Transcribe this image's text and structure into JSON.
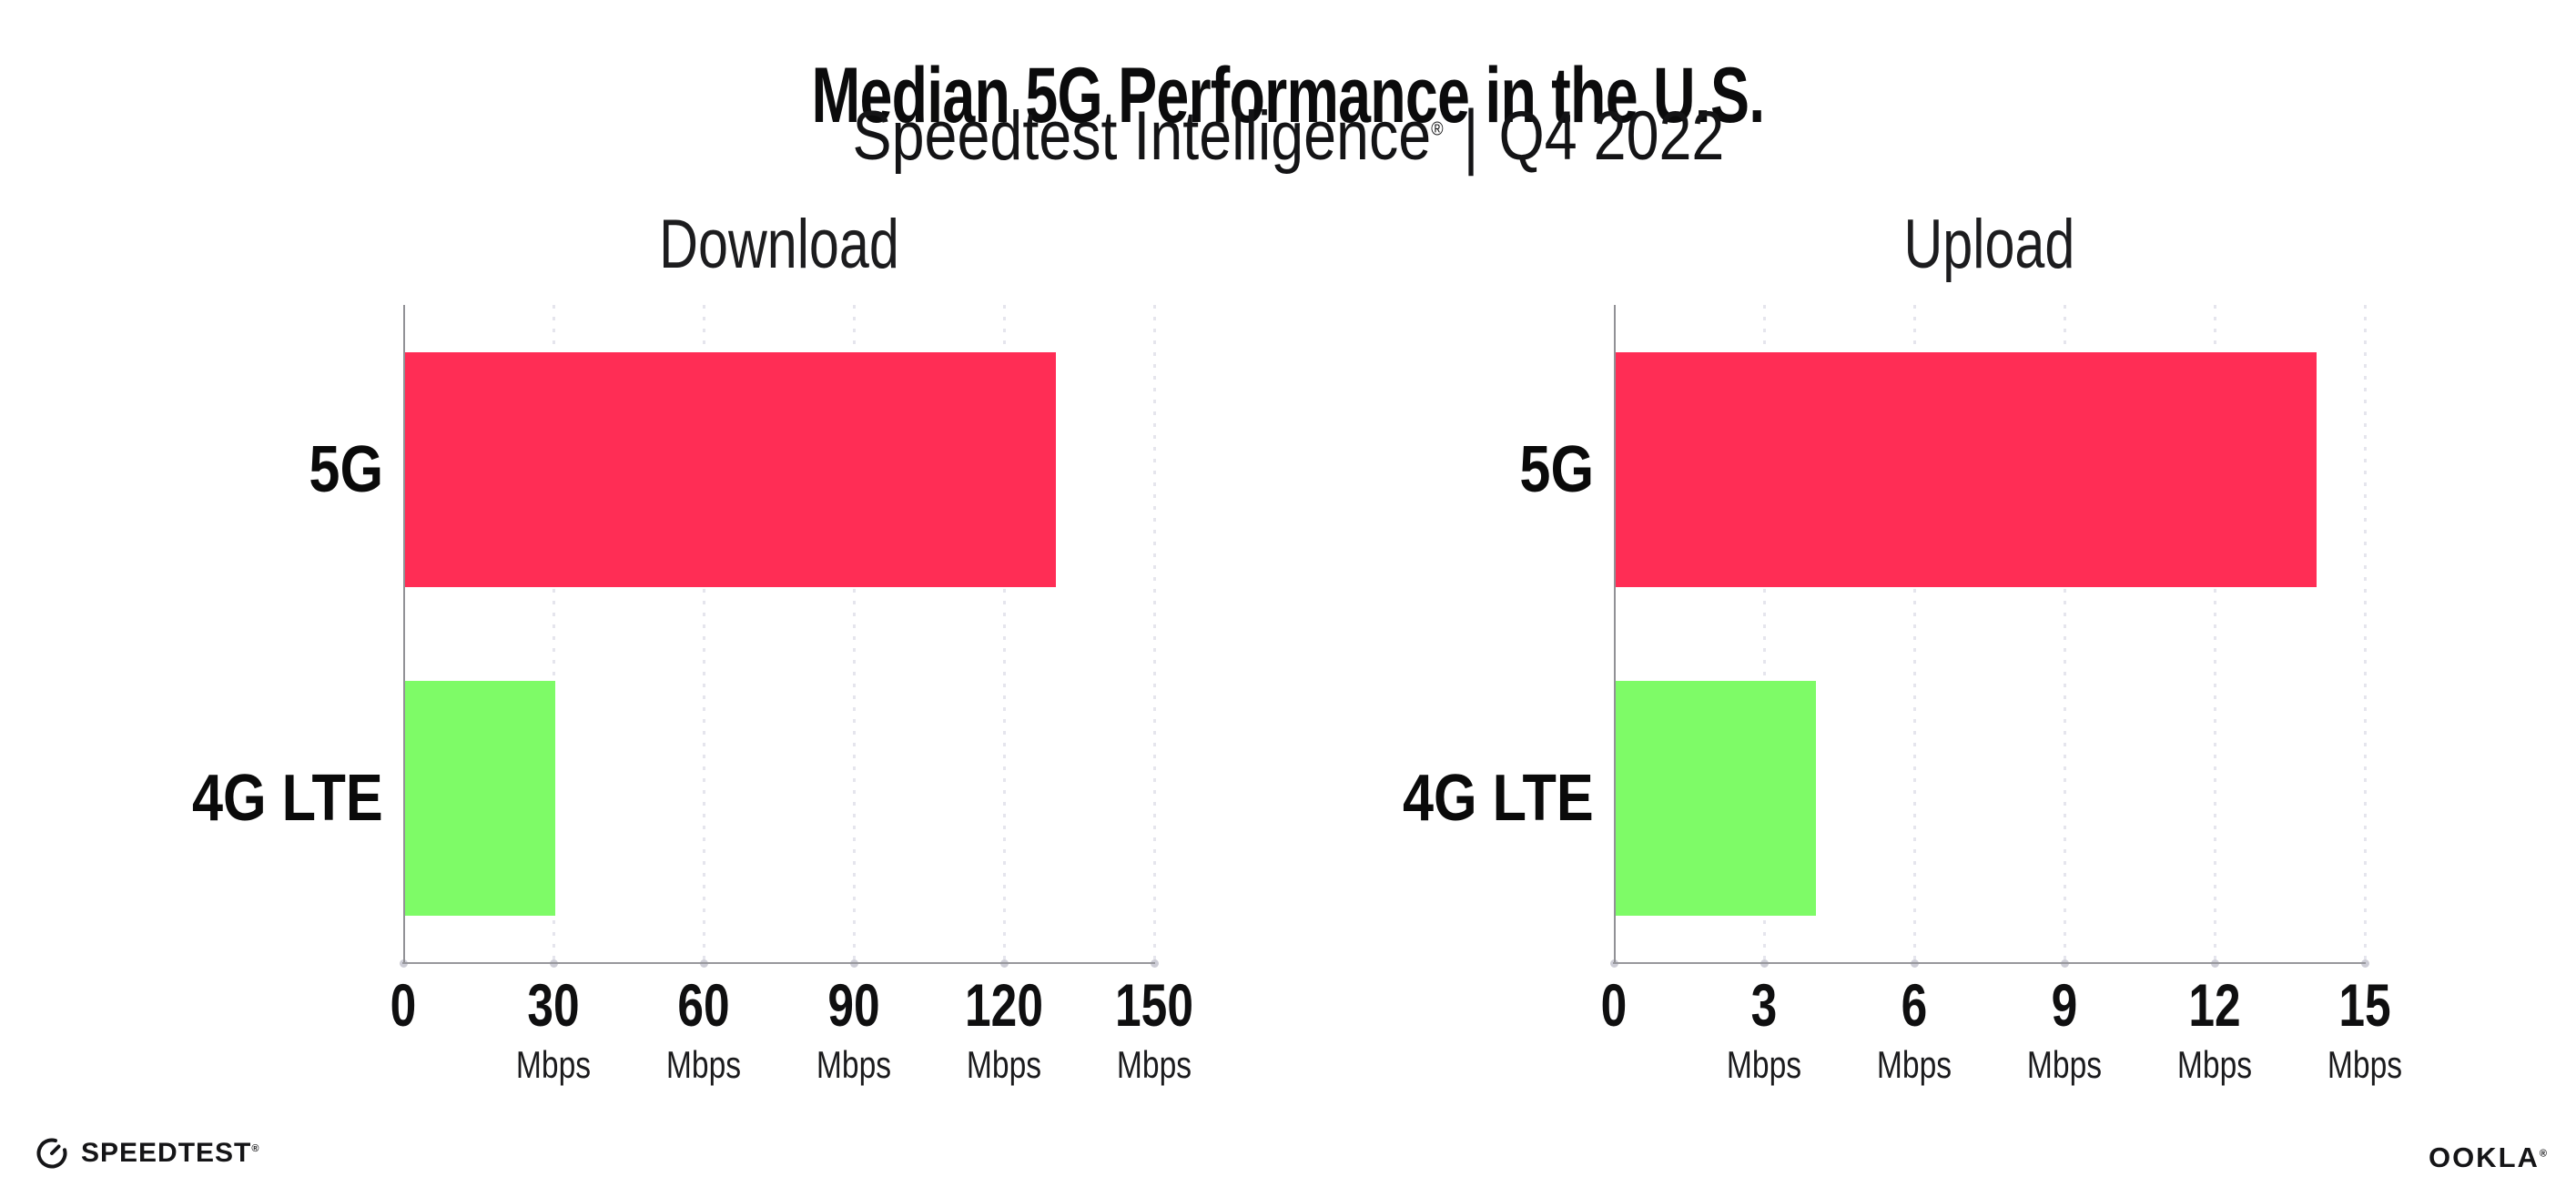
{
  "header": {
    "title": "Median 5G Performance in the U.S.",
    "subtitle_product": "Speedtest Intelligence",
    "subtitle_reg_mark": "®",
    "subtitle_separator": "|",
    "subtitle_period": "Q4 2022"
  },
  "chart_data": [
    {
      "type": "bar",
      "orientation": "horizontal",
      "title": "Download",
      "categories": [
        "5G",
        "4G LTE"
      ],
      "values": [
        130,
        30
      ],
      "unit": "Mbps",
      "xlim": [
        0,
        150
      ],
      "xticks": [
        0,
        30,
        60,
        90,
        120,
        150
      ],
      "tick_unit_label": "Mbps",
      "bar_colors": [
        "#FF2D55",
        "#7EFB67"
      ],
      "grid": "dotted-vertical-at-ticks",
      "legend": "none"
    },
    {
      "type": "bar",
      "orientation": "horizontal",
      "title": "Upload",
      "categories": [
        "5G",
        "4G LTE"
      ],
      "values": [
        14,
        4
      ],
      "unit": "Mbps",
      "xlim": [
        0,
        15
      ],
      "xticks": [
        0,
        3,
        6,
        9,
        12,
        15
      ],
      "tick_unit_label": "Mbps",
      "bar_colors": [
        "#FF2D55",
        "#7EFB67"
      ],
      "grid": "dotted-vertical-at-ticks",
      "legend": "none"
    }
  ],
  "footer": {
    "speedtest_logo_text": "SPEEDTEST",
    "speedtest_trademark": "®",
    "ookla_logo_text": "OOKLA",
    "ookla_trademark": "®"
  },
  "colors": {
    "bar_5g": "#FF2D55",
    "bar_4g_lte": "#7EFB67",
    "axis_line": "#919196",
    "gridline_dots": "#e5e5ed",
    "tick_dots": "#cdcdd6",
    "text": "#0b0b0c",
    "background": "#ffffff"
  }
}
